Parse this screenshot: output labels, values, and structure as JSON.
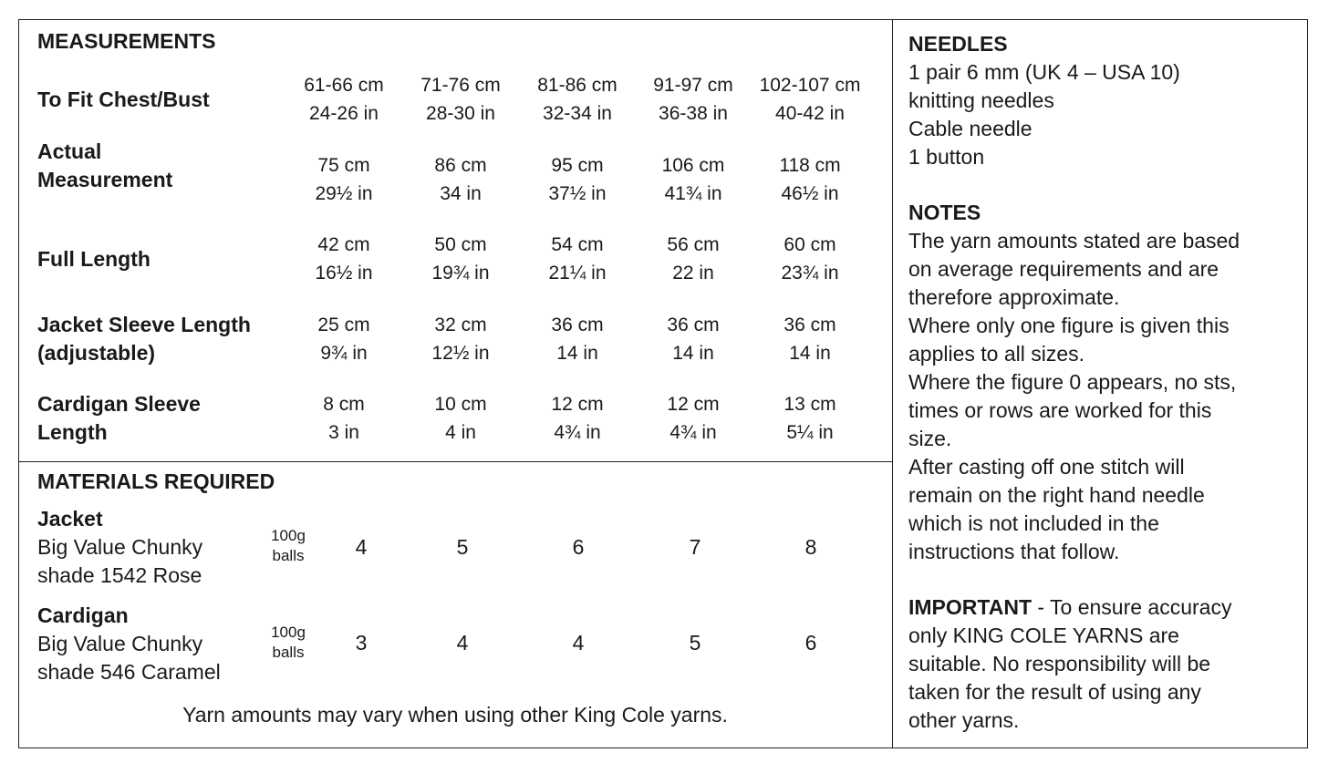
{
  "measurements": {
    "title": "MEASUREMENTS",
    "rows": [
      {
        "label": [
          "To Fit Chest/Bust"
        ],
        "cm": [
          "61-66 cm",
          "71-76 cm",
          "81-86 cm",
          "91-97 cm",
          "102-107 cm"
        ],
        "in": [
          "24-26 in",
          "28-30 in",
          "32-34 in",
          "36-38 in",
          "40-42 in"
        ]
      },
      {
        "label": [
          "Actual",
          "Measurement"
        ],
        "cm": [
          "75 cm",
          "86 cm",
          "95 cm",
          "106 cm",
          "118 cm"
        ],
        "in": [
          "29½ in",
          "34 in",
          "37½ in",
          "41¾ in",
          "46½ in"
        ]
      },
      {
        "label": [
          "Full Length"
        ],
        "cm": [
          "42 cm",
          "50 cm",
          "54 cm",
          "56 cm",
          "60 cm"
        ],
        "in": [
          "16½ in",
          "19¾ in",
          "21¼ in",
          "22 in",
          "23¾ in"
        ]
      },
      {
        "label": [
          "Jacket Sleeve Length",
          "(adjustable)"
        ],
        "cm": [
          "25 cm",
          "32 cm",
          "36 cm",
          "36 cm",
          "36 cm"
        ],
        "in": [
          "9¾ in",
          "12½ in",
          "14 in",
          "14 in",
          "14 in"
        ]
      },
      {
        "label": [
          "Cardigan Sleeve",
          "Length"
        ],
        "cm": [
          "8 cm",
          "10 cm",
          "12 cm",
          "12 cm",
          "13 cm"
        ],
        "in": [
          "3 in",
          "4 in",
          "4¾ in",
          "4¾ in",
          "5¼ in"
        ]
      }
    ]
  },
  "materials": {
    "title": "MATERIALS REQUIRED",
    "items": [
      {
        "name": "Jacket",
        "lines": [
          "Big Value Chunky",
          "shade 1542 Rose"
        ],
        "unit": [
          "100g",
          "balls"
        ],
        "qty": [
          "4",
          "5",
          "6",
          "7",
          "8"
        ]
      },
      {
        "name": "Cardigan",
        "lines": [
          "Big Value Chunky",
          "shade 546 Caramel"
        ],
        "unit": [
          "100g",
          "balls"
        ],
        "qty": [
          "3",
          "4",
          "4",
          "5",
          "6"
        ]
      }
    ],
    "footnote": "Yarn amounts may vary when using other King Cole yarns."
  },
  "needles": {
    "title": "NEEDLES",
    "lines": [
      "1 pair 6 mm (UK 4 – USA 10)",
      "knitting needles",
      "Cable needle",
      "1 button"
    ]
  },
  "notes": {
    "title": "NOTES",
    "lines": [
      "The yarn amounts stated are based",
      "on average requirements and are",
      "therefore approximate.",
      "Where only one figure is given this",
      "applies to all sizes.",
      "Where the figure 0 appears, no sts,",
      "times or rows are worked for this",
      "size.",
      "After casting off one stitch will",
      "remain on the right hand needle",
      "which is not included in the",
      "instructions that follow."
    ]
  },
  "important": {
    "title": "IMPORTANT",
    "first_line_rest": " - To ensure accuracy",
    "lines": [
      "only KING COLE YARNS are",
      "suitable. No responsibility will be",
      "taken for the result of using any",
      "other yarns."
    ]
  }
}
